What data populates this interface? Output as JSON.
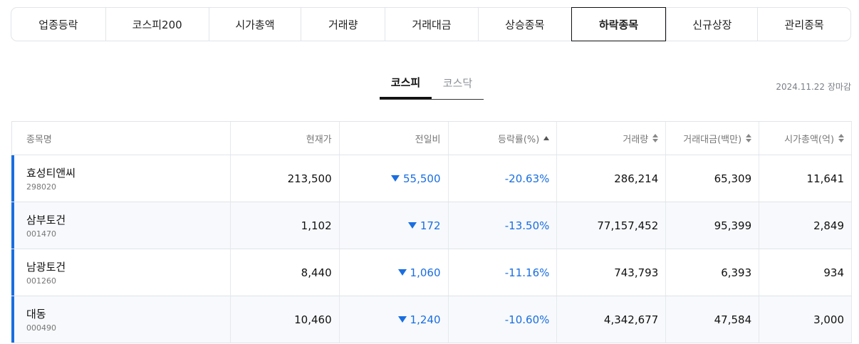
{
  "category_tabs": [
    {
      "label": "업종등락",
      "width": 132
    },
    {
      "label": "코스피200",
      "width": 145
    },
    {
      "label": "시가총액",
      "width": 130
    },
    {
      "label": "거래량",
      "width": 118
    },
    {
      "label": "거래대금",
      "width": 131
    },
    {
      "label": "상승종목",
      "width": 131
    },
    {
      "label": "하락종목",
      "width": 134
    },
    {
      "label": "신규상장",
      "width": 128
    },
    {
      "label": "관리종목",
      "width": 131
    }
  ],
  "active_category": "하락종목",
  "market_tabs": [
    "코스피",
    "코스닥"
  ],
  "active_market": "코스피",
  "as_of": "2024.11.22 장마감",
  "table": {
    "headers": [
      "종목명",
      "현재가",
      "전일비",
      "등락률(%)",
      "거래량",
      "거래대금(백만)",
      "시가총액(억)"
    ],
    "rows": [
      {
        "name": "효성티앤씨",
        "code": "298020",
        "price": "213,500",
        "change": "55,500",
        "rate": "-20.63%",
        "volume": "286,214",
        "amount": "65,309",
        "mcap": "11,641"
      },
      {
        "name": "삼부토건",
        "code": "001470",
        "price": "1,102",
        "change": "172",
        "rate": "-13.50%",
        "volume": "77,157,452",
        "amount": "95,399",
        "mcap": "2,849"
      },
      {
        "name": "남광토건",
        "code": "001260",
        "price": "8,440",
        "change": "1,060",
        "rate": "-11.16%",
        "volume": "743,793",
        "amount": "6,393",
        "mcap": "934"
      },
      {
        "name": "대동",
        "code": "000490",
        "price": "10,460",
        "change": "1,240",
        "rate": "-10.60%",
        "volume": "4,342,677",
        "amount": "47,584",
        "mcap": "3,000"
      }
    ]
  },
  "colors": {
    "down": "#1a6ee0"
  }
}
